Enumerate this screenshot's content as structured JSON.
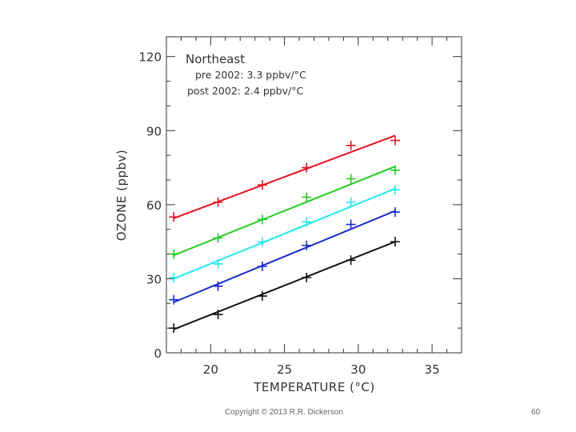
{
  "chart_data": {
    "type": "scatter",
    "title": "Northeast",
    "annotations": [
      "pre 2002: 3.3 ppbv/°C",
      "post 2002: 2.4 ppbv/°C"
    ],
    "xlabel": "TEMPERATURE (°C)",
    "ylabel": "OZONE (ppbv)",
    "xlim": [
      17,
      37
    ],
    "ylim": [
      0,
      128
    ],
    "xticks": [
      20,
      25,
      30,
      35
    ],
    "yticks": [
      0,
      30,
      60,
      90,
      120
    ],
    "grid": false,
    "series": [
      {
        "name": "red",
        "color": "#e8101e",
        "x": [
          17.5,
          20.5,
          23.5,
          26.5,
          29.5,
          32.5
        ],
        "y": [
          55,
          61,
          68,
          75,
          84,
          86
        ],
        "fit": [
          [
            17.5,
            54.5
          ],
          [
            32.5,
            88
          ]
        ]
      },
      {
        "name": "green",
        "color": "#22cc22",
        "x": [
          17.5,
          20.5,
          23.5,
          26.5,
          29.5,
          32.5
        ],
        "y": [
          40,
          46.5,
          54,
          63,
          70.5,
          74
        ],
        "fit": [
          [
            17.5,
            39.5
          ],
          [
            32.5,
            75.5
          ]
        ]
      },
      {
        "name": "cyan",
        "color": "#22e8ee",
        "x": [
          17.5,
          20.5,
          23.5,
          26.5,
          29.5,
          32.5
        ],
        "y": [
          30.5,
          36,
          45,
          53,
          61,
          66
        ],
        "fit": [
          [
            17.5,
            30
          ],
          [
            32.5,
            66.5
          ]
        ]
      },
      {
        "name": "blue",
        "color": "#1c2acc",
        "x": [
          17.5,
          20.5,
          23.5,
          26.5,
          29.5,
          32.5
        ],
        "y": [
          21.5,
          27,
          35,
          43.5,
          52,
          57
        ],
        "fit": [
          [
            17.5,
            20.5
          ],
          [
            32.5,
            57.5
          ]
        ]
      },
      {
        "name": "black",
        "color": "#111111",
        "x": [
          17.5,
          20.5,
          23.5,
          26.5,
          29.5,
          32.5
        ],
        "y": [
          10,
          15.5,
          23,
          30.5,
          37.5,
          45
        ],
        "fit": [
          [
            17.5,
            9.5
          ],
          [
            32.5,
            45
          ]
        ]
      }
    ]
  },
  "footer": {
    "copyright": "Copyright © 2013 R.R. Dickerson",
    "page_number": "60"
  }
}
